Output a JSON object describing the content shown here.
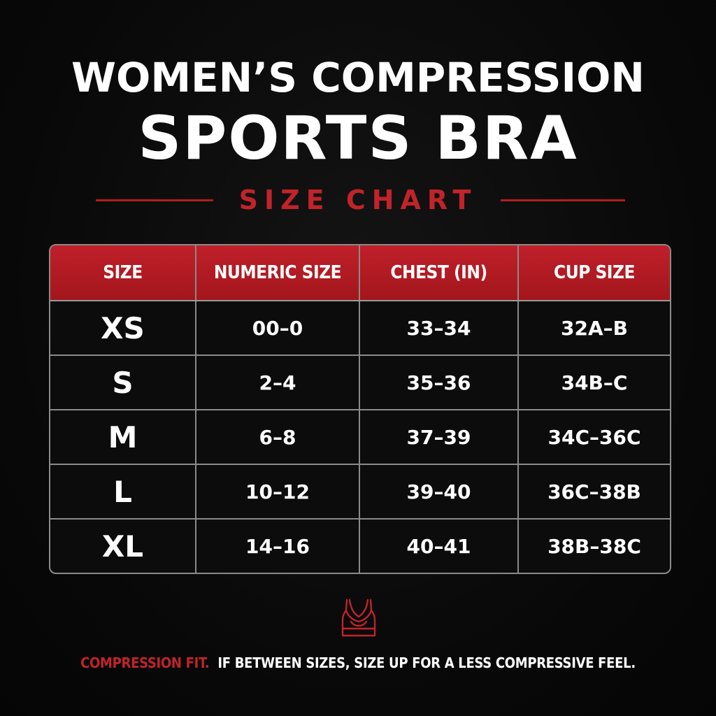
{
  "header": {
    "title_line1": "WOMEN’S COMPRESSION",
    "title_line2": "SPORTS BRA",
    "subtitle": "SIZE CHART"
  },
  "table": {
    "columns": [
      "SIZE",
      "NUMERIC SIZE",
      "CHEST (IN)",
      "CUP SIZE"
    ],
    "rows": [
      [
        "XS",
        "00–0",
        "33–34",
        "32A–B"
      ],
      [
        "S",
        "2–4",
        "35–36",
        "34B–C"
      ],
      [
        "M",
        "6–8",
        "37–39",
        "34C–36C"
      ],
      [
        "L",
        "10–12",
        "39–40",
        "36C–38B"
      ],
      [
        "XL",
        "14–16",
        "40–41",
        "38B–38C"
      ]
    ]
  },
  "footer": {
    "accent_text": "COMPRESSION FIT.",
    "body_text": "IF BETWEEN SIZES, SIZE UP FOR A LESS COMPRESSIVE FEEL."
  },
  "icon": "sports-bra-icon",
  "colors": {
    "background": "#0a0a0a",
    "accent_red": "#c0242a",
    "header_red": "#b51c1c",
    "text": "#ffffff",
    "border": "#8a8a8a"
  }
}
